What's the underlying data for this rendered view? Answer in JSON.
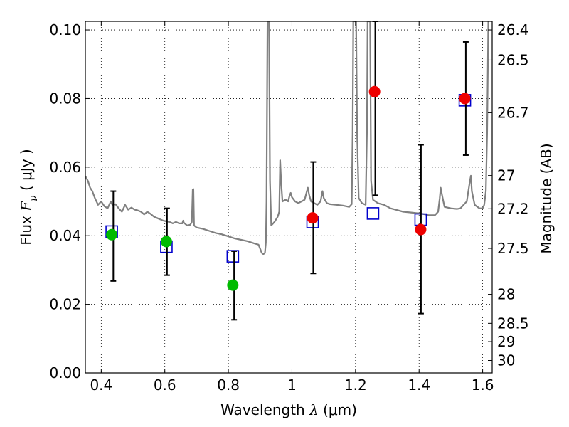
{
  "chart_data": {
    "type": "scatter",
    "xlabel_prefix": "Wavelength ",
    "xlabel_symbol": "λ",
    "xlabel_unit": " (μm)",
    "ylabel_prefix": "Flux ",
    "ylabel_symbol": "F",
    "ylabel_subscript": "ν",
    "ylabel_unit": " ( μJy )",
    "y2label": "Magnitude (AB)",
    "xlim": [
      0.35,
      1.63
    ],
    "ylim": [
      0.0,
      0.1025
    ],
    "grid": true,
    "x_ticks": [
      {
        "value": 0.4,
        "label": "0.4"
      },
      {
        "value": 0.6,
        "label": "0.6"
      },
      {
        "value": 0.8,
        "label": "0.8"
      },
      {
        "value": 1.0,
        "label": "1"
      },
      {
        "value": 1.2,
        "label": "1.2"
      },
      {
        "value": 1.4,
        "label": "1.4"
      },
      {
        "value": 1.6,
        "label": "1.6"
      }
    ],
    "y_ticks": [
      {
        "value": 0.0,
        "label": "0.00"
      },
      {
        "value": 0.02,
        "label": "0.02"
      },
      {
        "value": 0.04,
        "label": "0.04"
      },
      {
        "value": 0.06,
        "label": "0.06"
      },
      {
        "value": 0.08,
        "label": "0.08"
      },
      {
        "value": 0.1,
        "label": "0.10"
      }
    ],
    "mag_ticks": [
      {
        "value": 26.4,
        "label": "26.4"
      },
      {
        "value": 26.5,
        "label": "26.5"
      },
      {
        "value": 26.7,
        "label": "26.7"
      },
      {
        "value": 27.0,
        "label": "27"
      },
      {
        "value": 27.2,
        "label": "27.2"
      },
      {
        "value": 27.5,
        "label": "27.5"
      },
      {
        "value": 28.0,
        "label": "28"
      },
      {
        "value": 28.5,
        "label": "28.5"
      },
      {
        "value": 29.0,
        "label": "29"
      },
      {
        "value": 30.0,
        "label": "30"
      }
    ],
    "model_spectrum": {
      "color": "#808080",
      "points": [
        [
          0.35,
          0.0574
        ],
        [
          0.358,
          0.056
        ],
        [
          0.365,
          0.054
        ],
        [
          0.372,
          0.053
        ],
        [
          0.38,
          0.051
        ],
        [
          0.39,
          0.049
        ],
        [
          0.4,
          0.05
        ],
        [
          0.41,
          0.0486
        ],
        [
          0.42,
          0.048
        ],
        [
          0.43,
          0.05
        ],
        [
          0.435,
          0.049
        ],
        [
          0.445,
          0.0492
        ],
        [
          0.455,
          0.048
        ],
        [
          0.465,
          0.047
        ],
        [
          0.475,
          0.049
        ],
        [
          0.485,
          0.0476
        ],
        [
          0.495,
          0.0482
        ],
        [
          0.505,
          0.0476
        ],
        [
          0.515,
          0.0474
        ],
        [
          0.525,
          0.047
        ],
        [
          0.535,
          0.0462
        ],
        [
          0.545,
          0.047
        ],
        [
          0.555,
          0.0464
        ],
        [
          0.565,
          0.0456
        ],
        [
          0.575,
          0.0452
        ],
        [
          0.585,
          0.0448
        ],
        [
          0.595,
          0.0444
        ],
        [
          0.605,
          0.0442
        ],
        [
          0.615,
          0.044
        ],
        [
          0.625,
          0.0436
        ],
        [
          0.635,
          0.044
        ],
        [
          0.645,
          0.0436
        ],
        [
          0.655,
          0.0436
        ],
        [
          0.658,
          0.0444
        ],
        [
          0.66,
          0.0438
        ],
        [
          0.67,
          0.043
        ],
        [
          0.68,
          0.0432
        ],
        [
          0.685,
          0.044
        ],
        [
          0.688,
          0.0535
        ],
        [
          0.69,
          0.0536
        ],
        [
          0.692,
          0.043
        ],
        [
          0.7,
          0.0424
        ],
        [
          0.72,
          0.042
        ],
        [
          0.74,
          0.0414
        ],
        [
          0.76,
          0.0408
        ],
        [
          0.78,
          0.0404
        ],
        [
          0.8,
          0.0398
        ],
        [
          0.82,
          0.0392
        ],
        [
          0.84,
          0.0388
        ],
        [
          0.86,
          0.0384
        ],
        [
          0.88,
          0.0378
        ],
        [
          0.895,
          0.0374
        ],
        [
          0.905,
          0.035
        ],
        [
          0.91,
          0.0346
        ],
        [
          0.915,
          0.035
        ],
        [
          0.918,
          0.038
        ],
        [
          0.92,
          0.05
        ],
        [
          0.923,
          0.1025
        ],
        [
          0.928,
          0.1025
        ],
        [
          0.931,
          0.056
        ],
        [
          0.935,
          0.043
        ],
        [
          0.945,
          0.044
        ],
        [
          0.955,
          0.0455
        ],
        [
          0.96,
          0.047
        ],
        [
          0.963,
          0.062
        ],
        [
          0.966,
          0.0556
        ],
        [
          0.97,
          0.05
        ],
        [
          0.98,
          0.0505
        ],
        [
          0.988,
          0.05
        ],
        [
          0.992,
          0.0515
        ],
        [
          0.996,
          0.0525
        ],
        [
          1.0,
          0.0512
        ],
        [
          1.01,
          0.05
        ],
        [
          1.02,
          0.0495
        ],
        [
          1.03,
          0.05
        ],
        [
          1.04,
          0.0505
        ],
        [
          1.05,
          0.054
        ],
        [
          1.054,
          0.052
        ],
        [
          1.06,
          0.05
        ],
        [
          1.07,
          0.0495
        ],
        [
          1.08,
          0.049
        ],
        [
          1.09,
          0.05
        ],
        [
          1.096,
          0.053
        ],
        [
          1.1,
          0.051
        ],
        [
          1.11,
          0.0495
        ],
        [
          1.12,
          0.0492
        ],
        [
          1.14,
          0.049
        ],
        [
          1.16,
          0.0488
        ],
        [
          1.18,
          0.0484
        ],
        [
          1.188,
          0.0492
        ],
        [
          1.191,
          0.07
        ],
        [
          1.193,
          0.1025
        ],
        [
          1.202,
          0.1025
        ],
        [
          1.205,
          0.07
        ],
        [
          1.21,
          0.051
        ],
        [
          1.22,
          0.0495
        ],
        [
          1.232,
          0.049
        ],
        [
          1.236,
          0.07
        ],
        [
          1.238,
          0.1025
        ],
        [
          1.246,
          0.1025
        ],
        [
          1.249,
          0.056
        ],
        [
          1.255,
          0.0505
        ],
        [
          1.27,
          0.0495
        ],
        [
          1.29,
          0.049
        ],
        [
          1.31,
          0.048
        ],
        [
          1.33,
          0.0475
        ],
        [
          1.35,
          0.047
        ],
        [
          1.37,
          0.0468
        ],
        [
          1.39,
          0.0466
        ],
        [
          1.41,
          0.0464
        ],
        [
          1.43,
          0.046
        ],
        [
          1.45,
          0.046
        ],
        [
          1.46,
          0.047
        ],
        [
          1.465,
          0.051
        ],
        [
          1.468,
          0.054
        ],
        [
          1.472,
          0.052
        ],
        [
          1.48,
          0.0484
        ],
        [
          1.5,
          0.048
        ],
        [
          1.52,
          0.0478
        ],
        [
          1.53,
          0.048
        ],
        [
          1.54,
          0.049
        ],
        [
          1.55,
          0.05
        ],
        [
          1.56,
          0.056
        ],
        [
          1.563,
          0.0575
        ],
        [
          1.566,
          0.053
        ],
        [
          1.575,
          0.049
        ],
        [
          1.59,
          0.048
        ],
        [
          1.6,
          0.048
        ],
        [
          1.605,
          0.049
        ],
        [
          1.61,
          0.053
        ],
        [
          1.614,
          0.07
        ],
        [
          1.618,
          0.1025
        ]
      ]
    },
    "series": [
      {
        "marker": "square-open",
        "color": "#0000cc",
        "points": [
          [
            0.433,
            0.0412
          ],
          [
            0.605,
            0.0368
          ],
          [
            0.814,
            0.034
          ],
          [
            1.065,
            0.044
          ],
          [
            1.255,
            0.0465
          ],
          [
            1.405,
            0.0447
          ],
          [
            1.544,
            0.0795
          ]
        ]
      },
      {
        "marker": "circle",
        "color": "#00bb00",
        "points": [
          [
            0.433,
            0.0403
          ],
          [
            0.605,
            0.0383
          ],
          [
            0.814,
            0.0256
          ]
        ]
      },
      {
        "marker": "circle",
        "color": "#ee0000",
        "points": [
          [
            1.065,
            0.0452
          ],
          [
            1.26,
            0.082
          ],
          [
            1.405,
            0.0418
          ],
          [
            1.544,
            0.08
          ]
        ]
      }
    ],
    "error_bars": [
      {
        "x": 0.438,
        "low": 0.0268,
        "high": 0.053
      },
      {
        "x": 0.607,
        "low": 0.0285,
        "high": 0.048
      },
      {
        "x": 0.818,
        "low": 0.0155,
        "high": 0.0355
      },
      {
        "x": 1.067,
        "low": 0.029,
        "high": 0.0615
      },
      {
        "x": 1.262,
        "low": 0.0518,
        "high": 0.1025
      },
      {
        "x": 1.406,
        "low": 0.0173,
        "high": 0.0665
      },
      {
        "x": 1.547,
        "low": 0.0635,
        "high": 0.0965
      }
    ]
  }
}
